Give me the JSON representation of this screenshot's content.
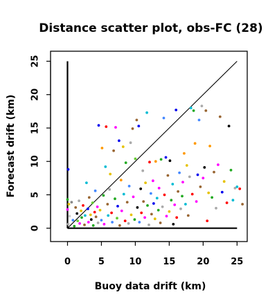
{
  "chart_data": {
    "type": "scatter",
    "title": "Distance scatter plot, obs-FC (28)",
    "xlabel": "Buoy data drift (km)",
    "ylabel": "Forecast drift (km)",
    "xlim": [
      -2.5,
      26.5
    ],
    "ylim": [
      -2,
      26.5
    ],
    "x_ticks": [
      0,
      5,
      10,
      15,
      20,
      25
    ],
    "y_ticks": [
      0,
      5,
      10,
      15,
      20,
      25
    ],
    "x_tick_labels": [
      "0",
      "5",
      "10",
      "15",
      "20",
      "25"
    ],
    "y_tick_labels": [
      "0",
      "5",
      "10",
      "15",
      "20",
      "25"
    ],
    "grid": false,
    "legend": "none",
    "reference_lines": [
      {
        "from": [
          0,
          0
        ],
        "to": [
          25,
          25
        ],
        "style": "thin"
      },
      {
        "from": [
          0,
          0
        ],
        "to": [
          0,
          25
        ],
        "style": "thick"
      },
      {
        "from": [
          0,
          0
        ],
        "to": [
          25,
          0
        ],
        "style": "thick"
      }
    ],
    "points": [
      {
        "x": 0.1,
        "y": 8.8,
        "color": "#0000ee"
      },
      {
        "x": 0.0,
        "y": 4.3,
        "color": "#22aa22"
      },
      {
        "x": 0.2,
        "y": 3.6,
        "color": "#e6c200"
      },
      {
        "x": 0.0,
        "y": 2.8,
        "color": "#ff00ff"
      },
      {
        "x": 0.3,
        "y": 1.8,
        "color": "#cccccc"
      },
      {
        "x": 0.1,
        "y": 0.6,
        "color": "#aaaaaa"
      },
      {
        "x": 0.6,
        "y": 3.9,
        "color": "#888888"
      },
      {
        "x": 0.8,
        "y": 1.2,
        "color": "#4488ff"
      },
      {
        "x": 1.0,
        "y": 0.3,
        "color": "#22aa22"
      },
      {
        "x": 1.2,
        "y": 3.1,
        "color": "#996633"
      },
      {
        "x": 1.4,
        "y": 2.2,
        "color": "#000000"
      },
      {
        "x": 1.5,
        "y": 1.1,
        "color": "#66cc33"
      },
      {
        "x": 1.7,
        "y": 4.1,
        "color": "#aaaaaa"
      },
      {
        "x": 1.8,
        "y": 0.7,
        "color": "#ff00ff"
      },
      {
        "x": 2.0,
        "y": 2.6,
        "color": "#e6c200"
      },
      {
        "x": 2.1,
        "y": 1.6,
        "color": "#22aa22"
      },
      {
        "x": 2.3,
        "y": 3.4,
        "color": "#ff0000"
      },
      {
        "x": 2.5,
        "y": 0.5,
        "color": "#996633"
      },
      {
        "x": 2.6,
        "y": 1.9,
        "color": "#00bcd4"
      },
      {
        "x": 2.8,
        "y": 6.8,
        "color": "#00bcd4"
      },
      {
        "x": 3.0,
        "y": 2.9,
        "color": "#0000ee"
      },
      {
        "x": 3.1,
        "y": 0.9,
        "color": "#ff00ff"
      },
      {
        "x": 3.2,
        "y": 4.6,
        "color": "#996633"
      },
      {
        "x": 3.4,
        "y": 2.0,
        "color": "#e6c200"
      },
      {
        "x": 3.5,
        "y": 1.3,
        "color": "#000000"
      },
      {
        "x": 3.7,
        "y": 3.8,
        "color": "#66cc33"
      },
      {
        "x": 3.8,
        "y": 0.4,
        "color": "#22aa22"
      },
      {
        "x": 4.0,
        "y": 2.4,
        "color": "#ff0000"
      },
      {
        "x": 4.1,
        "y": 5.6,
        "color": "#4488ff"
      },
      {
        "x": 4.2,
        "y": 1.7,
        "color": "#996633"
      },
      {
        "x": 4.4,
        "y": 3.2,
        "color": "#ff00ff"
      },
      {
        "x": 4.5,
        "y": 0.8,
        "color": "#aaaaaa"
      },
      {
        "x": 4.6,
        "y": 15.4,
        "color": "#0000ee"
      },
      {
        "x": 4.8,
        "y": 2.7,
        "color": "#e6c200"
      },
      {
        "x": 5.0,
        "y": 1.2,
        "color": "#4488ff"
      },
      {
        "x": 5.1,
        "y": 12.0,
        "color": "#ff9900"
      },
      {
        "x": 5.3,
        "y": 4.9,
        "color": "#22aa22"
      },
      {
        "x": 5.4,
        "y": 0.6,
        "color": "#ff00ff"
      },
      {
        "x": 5.6,
        "y": 9.2,
        "color": "#00bcd4"
      },
      {
        "x": 5.7,
        "y": 15.2,
        "color": "#ff0000"
      },
      {
        "x": 5.9,
        "y": 3.6,
        "color": "#996633"
      },
      {
        "x": 6.0,
        "y": 1.9,
        "color": "#00bcd4"
      },
      {
        "x": 6.2,
        "y": 5.8,
        "color": "#aaaaaa"
      },
      {
        "x": 6.3,
        "y": 8.1,
        "color": "#e6c200"
      },
      {
        "x": 6.5,
        "y": 2.3,
        "color": "#ff0000"
      },
      {
        "x": 6.6,
        "y": 0.9,
        "color": "#4488ff"
      },
      {
        "x": 6.8,
        "y": 11.6,
        "color": "#996633"
      },
      {
        "x": 7.0,
        "y": 4.4,
        "color": "#22aa22"
      },
      {
        "x": 7.1,
        "y": 15.1,
        "color": "#ff00ff"
      },
      {
        "x": 7.3,
        "y": 1.5,
        "color": "#66cc33"
      },
      {
        "x": 7.4,
        "y": 3.3,
        "color": "#0000ee"
      },
      {
        "x": 7.6,
        "y": 13.1,
        "color": "#0000ee"
      },
      {
        "x": 7.7,
        "y": 0.4,
        "color": "#996633"
      },
      {
        "x": 7.9,
        "y": 7.2,
        "color": "#ff9900"
      },
      {
        "x": 8.0,
        "y": 2.6,
        "color": "#ff00ff"
      },
      {
        "x": 8.2,
        "y": 12.2,
        "color": "#e6c200"
      },
      {
        "x": 8.3,
        "y": 5.1,
        "color": "#00bcd4"
      },
      {
        "x": 8.5,
        "y": 1.1,
        "color": "#ff0000"
      },
      {
        "x": 8.6,
        "y": 9.8,
        "color": "#22aa22"
      },
      {
        "x": 8.8,
        "y": 3.9,
        "color": "#996633"
      },
      {
        "x": 9.0,
        "y": 0.7,
        "color": "#aaaaaa"
      },
      {
        "x": 9.1,
        "y": 6.3,
        "color": "#4488ff"
      },
      {
        "x": 9.3,
        "y": 12.8,
        "color": "#aaaaaa"
      },
      {
        "x": 9.4,
        "y": 2.0,
        "color": "#e6c200"
      },
      {
        "x": 9.6,
        "y": 14.9,
        "color": "#996633"
      },
      {
        "x": 9.7,
        "y": 4.7,
        "color": "#ff00ff"
      },
      {
        "x": 9.9,
        "y": 1.3,
        "color": "#22aa22"
      },
      {
        "x": 10.0,
        "y": 10.4,
        "color": "#66cc33"
      },
      {
        "x": 10.2,
        "y": 16.2,
        "color": "#996633"
      },
      {
        "x": 10.3,
        "y": 3.1,
        "color": "#000000"
      },
      {
        "x": 10.5,
        "y": 15.3,
        "color": "#0000ee"
      },
      {
        "x": 10.6,
        "y": 0.9,
        "color": "#4488ff"
      },
      {
        "x": 10.8,
        "y": 5.9,
        "color": "#000000"
      },
      {
        "x": 10.9,
        "y": 2.3,
        "color": "#ff0000"
      },
      {
        "x": 11.1,
        "y": 8.6,
        "color": "#aaaaaa"
      },
      {
        "x": 11.2,
        "y": 4.0,
        "color": "#996633"
      },
      {
        "x": 11.4,
        "y": 1.6,
        "color": "#ff00ff"
      },
      {
        "x": 11.5,
        "y": 6.8,
        "color": "#e6c200"
      },
      {
        "x": 11.7,
        "y": 17.3,
        "color": "#00bcd4"
      },
      {
        "x": 11.8,
        "y": 3.4,
        "color": "#22aa22"
      },
      {
        "x": 12.0,
        "y": 0.5,
        "color": "#aaaaaa"
      },
      {
        "x": 12.1,
        "y": 9.9,
        "color": "#ff0000"
      },
      {
        "x": 12.3,
        "y": 5.2,
        "color": "#4488ff"
      },
      {
        "x": 12.4,
        "y": 2.1,
        "color": "#996633"
      },
      {
        "x": 12.6,
        "y": 7.1,
        "color": "#ff00ff"
      },
      {
        "x": 12.7,
        "y": 3.7,
        "color": "#0000ee"
      },
      {
        "x": 12.9,
        "y": 1.4,
        "color": "#e6c200"
      },
      {
        "x": 13.0,
        "y": 10.0,
        "color": "#ff9900"
      },
      {
        "x": 13.2,
        "y": 4.5,
        "color": "#00bcd4"
      },
      {
        "x": 13.4,
        "y": 2.7,
        "color": "#22aa22"
      },
      {
        "x": 13.5,
        "y": 6.0,
        "color": "#ff00ff"
      },
      {
        "x": 13.7,
        "y": 0.8,
        "color": "#996633"
      },
      {
        "x": 13.8,
        "y": 10.3,
        "color": "#22aa22"
      },
      {
        "x": 14.0,
        "y": 3.2,
        "color": "#aaaaaa"
      },
      {
        "x": 14.2,
        "y": 16.5,
        "color": "#4488ff"
      },
      {
        "x": 14.3,
        "y": 5.0,
        "color": "#ff0000"
      },
      {
        "x": 14.5,
        "y": 10.6,
        "color": "#0000ee"
      },
      {
        "x": 14.6,
        "y": 1.8,
        "color": "#ff00ff"
      },
      {
        "x": 14.8,
        "y": 7.9,
        "color": "#996633"
      },
      {
        "x": 15.0,
        "y": 2.5,
        "color": "#e6c200"
      },
      {
        "x": 15.1,
        "y": 10.1,
        "color": "#000000"
      },
      {
        "x": 15.3,
        "y": 4.2,
        "color": "#22aa22"
      },
      {
        "x": 15.5,
        "y": 6.6,
        "color": "#00bcd4"
      },
      {
        "x": 15.6,
        "y": 0.6,
        "color": "#000000"
      },
      {
        "x": 15.8,
        "y": 3.5,
        "color": "#ff00ff"
      },
      {
        "x": 16.0,
        "y": 17.7,
        "color": "#0000ee"
      },
      {
        "x": 16.1,
        "y": 1.6,
        "color": "#ff0000"
      },
      {
        "x": 16.3,
        "y": 5.5,
        "color": "#996633"
      },
      {
        "x": 16.5,
        "y": 8.3,
        "color": "#4488ff"
      },
      {
        "x": 16.7,
        "y": 2.9,
        "color": "#aaaaaa"
      },
      {
        "x": 16.9,
        "y": 4.8,
        "color": "#22aa22"
      },
      {
        "x": 17.0,
        "y": 6.9,
        "color": "#ff00ff"
      },
      {
        "x": 17.2,
        "y": 11.2,
        "color": "#ff9900"
      },
      {
        "x": 17.4,
        "y": 3.6,
        "color": "#00bcd4"
      },
      {
        "x": 17.6,
        "y": 9.4,
        "color": "#e6c200"
      },
      {
        "x": 17.8,
        "y": 1.9,
        "color": "#996633"
      },
      {
        "x": 18.0,
        "y": 7.7,
        "color": "#aaaaaa"
      },
      {
        "x": 18.2,
        "y": 18.0,
        "color": "#00bcd4"
      },
      {
        "x": 18.4,
        "y": 5.1,
        "color": "#ff0000"
      },
      {
        "x": 18.6,
        "y": 17.6,
        "color": "#22aa22"
      },
      {
        "x": 18.8,
        "y": 12.7,
        "color": "#ff9900"
      },
      {
        "x": 19.0,
        "y": 4.0,
        "color": "#ff00ff"
      },
      {
        "x": 19.2,
        "y": 8.0,
        "color": "#0000ee"
      },
      {
        "x": 19.4,
        "y": 16.2,
        "color": "#4488ff"
      },
      {
        "x": 19.6,
        "y": 6.2,
        "color": "#996633"
      },
      {
        "x": 19.8,
        "y": 18.3,
        "color": "#aaaaaa"
      },
      {
        "x": 20.0,
        "y": 7.5,
        "color": "#ff00ff"
      },
      {
        "x": 20.2,
        "y": 9.1,
        "color": "#000000"
      },
      {
        "x": 20.4,
        "y": 17.6,
        "color": "#996633"
      },
      {
        "x": 20.6,
        "y": 1.1,
        "color": "#ff0000"
      },
      {
        "x": 20.8,
        "y": 5.3,
        "color": "#e6c200"
      },
      {
        "x": 21.0,
        "y": 12.3,
        "color": "#ff9900"
      },
      {
        "x": 21.3,
        "y": 4.6,
        "color": "#22aa22"
      },
      {
        "x": 21.6,
        "y": 8.4,
        "color": "#996633"
      },
      {
        "x": 21.9,
        "y": 3.0,
        "color": "#aaaaaa"
      },
      {
        "x": 22.2,
        "y": 9.5,
        "color": "#ff00ff"
      },
      {
        "x": 22.5,
        "y": 16.7,
        "color": "#996633"
      },
      {
        "x": 22.8,
        "y": 5.4,
        "color": "#0000ee"
      },
      {
        "x": 23.1,
        "y": 7.0,
        "color": "#e6c200"
      },
      {
        "x": 23.5,
        "y": 3.8,
        "color": "#ff0000"
      },
      {
        "x": 23.8,
        "y": 15.3,
        "color": "#000000"
      },
      {
        "x": 24.1,
        "y": 8.7,
        "color": "#22aa22"
      },
      {
        "x": 24.4,
        "y": 4.2,
        "color": "#00bcd4"
      },
      {
        "x": 24.7,
        "y": 6.0,
        "color": "#aaaaaa"
      },
      {
        "x": 25.0,
        "y": 6.2,
        "color": "#00bcd4"
      },
      {
        "x": 25.4,
        "y": 5.9,
        "color": "#ff0000"
      },
      {
        "x": 25.8,
        "y": 3.6,
        "color": "#996633"
      }
    ]
  }
}
